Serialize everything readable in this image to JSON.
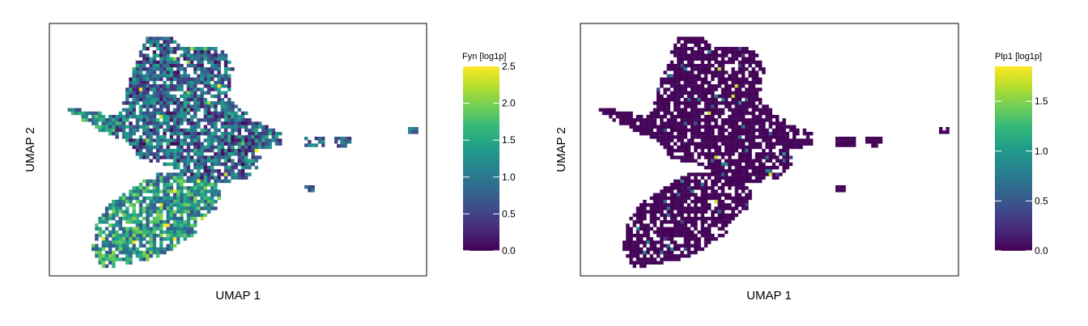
{
  "chart_data": [
    {
      "type": "scatter",
      "subtype": "umap-hexbin-feature-plot",
      "xlabel": "UMAP 1",
      "ylabel": "UMAP 2",
      "feature": "Fyn",
      "legend": {
        "title": "Fyn [log1p]",
        "placement": "right",
        "ticks": [
          0.0,
          0.5,
          1.0,
          1.5,
          2.0,
          2.5
        ],
        "tick_labels": [
          "0.0",
          "0.5",
          "1.0",
          "1.5",
          "2.0",
          "2.5"
        ],
        "range": [
          0,
          2.5
        ]
      },
      "colormap": "viridis",
      "grid": false,
      "expression_by_region": {
        "upper_branch": 0.8,
        "left_arm": 1.1,
        "lower_lobe": 1.3,
        "outliers": 0.5
      }
    },
    {
      "type": "scatter",
      "subtype": "umap-hexbin-feature-plot",
      "xlabel": "UMAP 1",
      "ylabel": "UMAP 2",
      "feature": "Plp1",
      "legend": {
        "title": "Plp1 [log1p]",
        "placement": "right",
        "ticks": [
          0.0,
          0.5,
          1.0,
          1.5
        ],
        "tick_labels": [
          "0.0",
          "0.5",
          "1.0",
          "1.5"
        ],
        "range": [
          0,
          1.85
        ]
      },
      "colormap": "viridis",
      "grid": false,
      "expression_by_region": {
        "upper_branch": 0.05,
        "left_arm": 0.05,
        "lower_lobe": 0.05,
        "outliers": 0.0
      }
    }
  ],
  "colors": {
    "viridis": [
      "#440154",
      "#482878",
      "#3e4989",
      "#31688e",
      "#26828e",
      "#1f9e89",
      "#35b779",
      "#6ece58",
      "#b5de2b",
      "#fde725"
    ]
  }
}
